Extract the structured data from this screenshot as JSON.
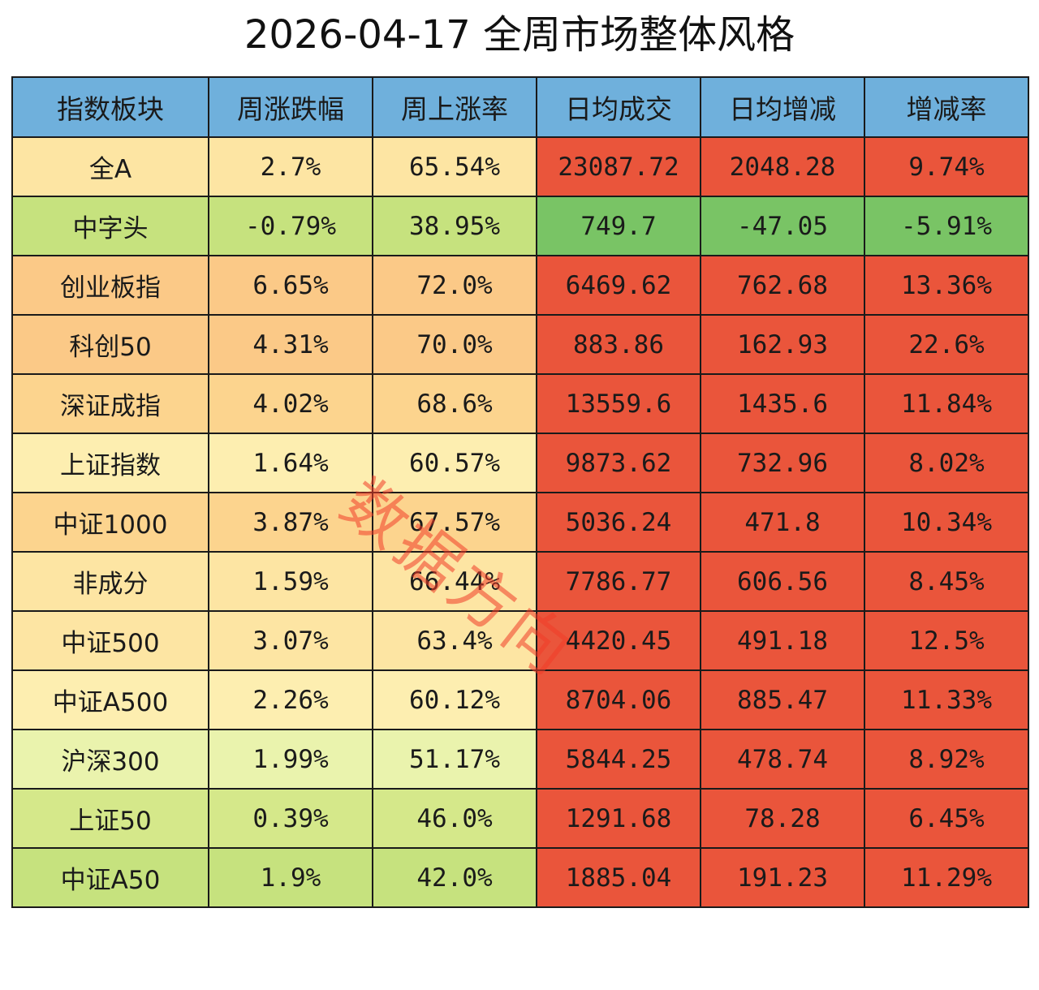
{
  "title": "2026-04-17 全周市场整体风格",
  "watermark": "数据方向",
  "colors": {
    "header": "#6fb0dc",
    "red": "#ea553b",
    "green": "#79c465",
    "peach_dark": "#fbc987",
    "peach": "#fcd48e",
    "yellow": "#fde5a3",
    "yellow_light": "#fdeeb0",
    "yellow_green": "#eaf3ad",
    "light_green": "#d5e88a",
    "mid_green": "#c6e27e"
  },
  "chart_data": {
    "type": "table",
    "title": "2026-04-17 全周市场整体风格",
    "columns": [
      "指数板块",
      "周涨跌幅",
      "周上涨率",
      "日均成交",
      "日均增减",
      "增减率"
    ],
    "rows": [
      {
        "name": "全A",
        "change": "2.7%",
        "up_rate": "65.54%",
        "avg_volume": "23087.72",
        "avg_delta": "2048.28",
        "delta_rate": "9.74%",
        "row_color": "yellow",
        "metric_color": "red"
      },
      {
        "name": "中字头",
        "change": "-0.79%",
        "up_rate": "38.95%",
        "avg_volume": "749.7",
        "avg_delta": "-47.05",
        "delta_rate": "-5.91%",
        "row_color": "mid_green",
        "metric_color": "green"
      },
      {
        "name": "创业板指",
        "change": "6.65%",
        "up_rate": "72.0%",
        "avg_volume": "6469.62",
        "avg_delta": "762.68",
        "delta_rate": "13.36%",
        "row_color": "peach_dark",
        "metric_color": "red"
      },
      {
        "name": "科创50",
        "change": "4.31%",
        "up_rate": "70.0%",
        "avg_volume": "883.86",
        "avg_delta": "162.93",
        "delta_rate": "22.6%",
        "row_color": "peach_dark",
        "metric_color": "red"
      },
      {
        "name": "深证成指",
        "change": "4.02%",
        "up_rate": "68.6%",
        "avg_volume": "13559.6",
        "avg_delta": "1435.6",
        "delta_rate": "11.84%",
        "row_color": "peach",
        "metric_color": "red"
      },
      {
        "name": "上证指数",
        "change": "1.64%",
        "up_rate": "60.57%",
        "avg_volume": "9873.62",
        "avg_delta": "732.96",
        "delta_rate": "8.02%",
        "row_color": "yellow_light",
        "metric_color": "red"
      },
      {
        "name": "中证1000",
        "change": "3.87%",
        "up_rate": "67.57%",
        "avg_volume": "5036.24",
        "avg_delta": "471.8",
        "delta_rate": "10.34%",
        "row_color": "peach",
        "metric_color": "red"
      },
      {
        "name": "非成分",
        "change": "1.59%",
        "up_rate": "66.44%",
        "avg_volume": "7786.77",
        "avg_delta": "606.56",
        "delta_rate": "8.45%",
        "row_color": "yellow",
        "metric_color": "red"
      },
      {
        "name": "中证500",
        "change": "3.07%",
        "up_rate": "63.4%",
        "avg_volume": "4420.45",
        "avg_delta": "491.18",
        "delta_rate": "12.5%",
        "row_color": "yellow",
        "metric_color": "red"
      },
      {
        "name": "中证A500",
        "change": "2.26%",
        "up_rate": "60.12%",
        "avg_volume": "8704.06",
        "avg_delta": "885.47",
        "delta_rate": "11.33%",
        "row_color": "yellow_light",
        "metric_color": "red"
      },
      {
        "name": "沪深300",
        "change": "1.99%",
        "up_rate": "51.17%",
        "avg_volume": "5844.25",
        "avg_delta": "478.74",
        "delta_rate": "8.92%",
        "row_color": "yellow_green",
        "metric_color": "red"
      },
      {
        "name": "上证50",
        "change": "0.39%",
        "up_rate": "46.0%",
        "avg_volume": "1291.68",
        "avg_delta": "78.28",
        "delta_rate": "6.45%",
        "row_color": "light_green",
        "metric_color": "red"
      },
      {
        "name": "中证A50",
        "change": "1.9%",
        "up_rate": "42.0%",
        "avg_volume": "1885.04",
        "avg_delta": "191.23",
        "delta_rate": "11.29%",
        "row_color": "mid_green",
        "metric_color": "red"
      }
    ]
  }
}
